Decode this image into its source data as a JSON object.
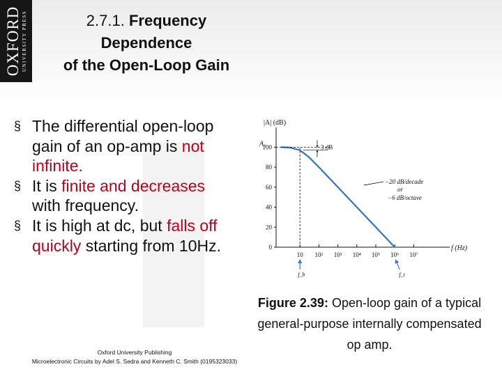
{
  "logo": {
    "name": "OXFORD",
    "sub": "UNIVERSITY PRESS"
  },
  "title": {
    "number": "2.7.1.",
    "line1": "Frequency",
    "line2": "Dependence",
    "line3": "of the Open-Loop Gain"
  },
  "bullets": [
    {
      "parts": [
        {
          "text": "The differential open-loop gain of an op-amp is ",
          "emph": false
        },
        {
          "text": "not infinite.",
          "emph": true
        }
      ]
    },
    {
      "parts": [
        {
          "text": "It is ",
          "emph": false
        },
        {
          "text": "finite and decreases",
          "emph": true
        },
        {
          "text": " with frequency.",
          "emph": false
        }
      ]
    },
    {
      "parts": [
        {
          "text": "It is high at dc, but ",
          "emph": false
        },
        {
          "text": "falls off quickly",
          "emph": true
        },
        {
          "text": " starting from 10Hz.",
          "emph": false
        }
      ]
    }
  ],
  "footer": {
    "line1": "Oxford University Publishing",
    "line2": "Microelectronic Circuits by Adel S. Sedra and Kenneth C. Smith (0195323033)"
  },
  "chart_data": {
    "type": "line",
    "ylabel": "|A| (dB)",
    "xlabel": "f (Hz)",
    "x_scale": "log",
    "x_ticks": [
      "10",
      "10²",
      "10³",
      "10⁴",
      "10⁵",
      "10⁶",
      "10⁷"
    ],
    "y_ticks": [
      "0",
      "20",
      "40",
      "60",
      "80",
      "100"
    ],
    "ylim": [
      0,
      110
    ],
    "series": [
      {
        "x": [
          1,
          3,
          10,
          30,
          100,
          1000,
          10000,
          100000,
          1000000
        ],
        "y": [
          100,
          99.6,
          97,
          90,
          80,
          60,
          40,
          20,
          0
        ]
      }
    ],
    "annotations": {
      "a0": "A₀",
      "three_db": "3 dB",
      "slope1": "−20 dB/decade",
      "or": "or",
      "slope2": "−6 dB/octave",
      "fb": "f_b",
      "ft": "f_t"
    }
  },
  "caption": {
    "label": "Figure 2.39:",
    "text": " Open-loop gain of a typical general-purpose internally compensated op amp."
  }
}
